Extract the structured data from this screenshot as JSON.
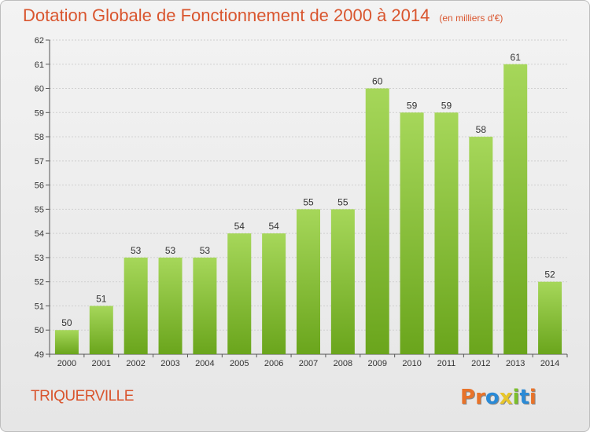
{
  "header": {
    "title": "Dotation Globale de Fonctionnement de 2000 à 2014",
    "unit": "(en milliers d'€)"
  },
  "footer": {
    "commune": "TRIQUERVILLE",
    "logo": "Proxiti",
    "logo_letters": [
      {
        "ch": "P",
        "color": "#e8732a"
      },
      {
        "ch": "r",
        "color": "#e8732a"
      },
      {
        "ch": "o",
        "color": "#2a8ad6"
      },
      {
        "ch": "x",
        "color": "#e8c62a"
      },
      {
        "ch": "i",
        "color": "#7bbf2a"
      },
      {
        "ch": "t",
        "color": "#2a8ad6"
      },
      {
        "ch": "i",
        "color": "#e8732a"
      }
    ]
  },
  "colors": {
    "title": "#d9552e",
    "bar_top": "#a6d75a",
    "bar_bottom": "#6aa51c",
    "grid": "#cfcfcf",
    "axis_text": "#333333"
  },
  "chart_data": {
    "type": "bar",
    "title": "Dotation Globale de Fonctionnement de 2000 à 2014",
    "subtitle": "(en milliers d'€)",
    "categories": [
      "2000",
      "2001",
      "2002",
      "2003",
      "2004",
      "2005",
      "2006",
      "2007",
      "2008",
      "2009",
      "2010",
      "2011",
      "2012",
      "2013",
      "2014"
    ],
    "values": [
      50,
      51,
      53,
      53,
      53,
      54,
      54,
      55,
      55,
      60,
      59,
      59,
      58,
      61,
      52
    ],
    "ylim": [
      49,
      62
    ],
    "yticks": [
      49,
      50,
      51,
      52,
      53,
      54,
      55,
      56,
      57,
      58,
      59,
      60,
      61,
      62
    ],
    "grid": true,
    "legend": "none",
    "data_labels": true
  }
}
